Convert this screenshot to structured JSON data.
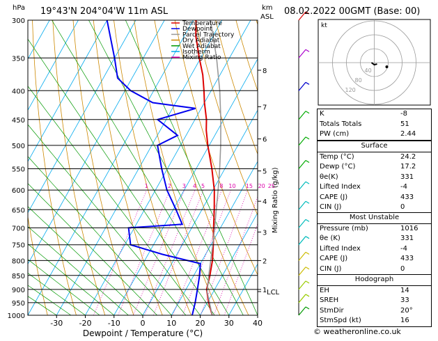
{
  "header": {
    "hpa": "hPa",
    "location": "19°43'N  204°04'W  11m  ASL",
    "km": "km",
    "asl": "ASL",
    "datetime": "08.02.2022  00GMT  (Base: 00)"
  },
  "copyright": "© weatheronline.co.uk",
  "legend": [
    {
      "label": "Temperature",
      "color": "#dd0000"
    },
    {
      "label": "Dewpoint",
      "color": "#0000ee"
    },
    {
      "label": "Parcel Trajectory",
      "color": "#999999"
    },
    {
      "label": "Dry Adiabat",
      "color": "#cc8800"
    },
    {
      "label": "Wet Adiabat",
      "color": "#009900"
    },
    {
      "label": "Isotherm",
      "color": "#00aaee"
    },
    {
      "label": "Mixing Ratio",
      "color": "#dd00aa"
    }
  ],
  "indices": {
    "rows": [
      {
        "label": "K",
        "value": "-8"
      },
      {
        "label": "Totals Totals",
        "value": "51"
      },
      {
        "label": "PW (cm)",
        "value": "2.44"
      }
    ]
  },
  "surface": {
    "title": "Surface",
    "rows": [
      {
        "label": "Temp (°C)",
        "value": "24.2"
      },
      {
        "label": "Dewp (°C)",
        "value": "17.2"
      },
      {
        "label": "θe(K)",
        "value": "331"
      },
      {
        "label": "Lifted Index",
        "value": "-4"
      },
      {
        "label": "CAPE (J)",
        "value": "433"
      },
      {
        "label": "CIN (J)",
        "value": "0"
      }
    ]
  },
  "most_unstable": {
    "title": "Most Unstable",
    "rows": [
      {
        "label": "Pressure (mb)",
        "value": "1016"
      },
      {
        "label": "θe (K)",
        "value": "331"
      },
      {
        "label": "Lifted Index",
        "value": "-4"
      },
      {
        "label": "CAPE (J)",
        "value": "433"
      },
      {
        "label": "CIN (J)",
        "value": "0"
      }
    ]
  },
  "hodograph_table": {
    "title": "Hodograph",
    "rows": [
      {
        "label": "EH",
        "value": "14"
      },
      {
        "label": "SREH",
        "value": "33"
      },
      {
        "label": "StmDir",
        "value": "20°"
      },
      {
        "label": "StmSpd (kt)",
        "value": "16"
      }
    ]
  },
  "hodograph_plot": {
    "unit_label": "kt",
    "ring_labels": [
      "40",
      "80",
      "120"
    ]
  },
  "chart_data": {
    "type": "line",
    "xlabel": "Dewpoint / Temperature (°C)",
    "ylabel": "hPa",
    "right_label": "Mixing Ratio (g/kg)",
    "x_ticks": [
      "-30",
      "-20",
      "-10",
      "0",
      "10",
      "20",
      "30",
      "40"
    ],
    "xlim": [
      -40,
      40
    ],
    "pressure_levels": [
      "300",
      "350",
      "400",
      "450",
      "500",
      "550",
      "600",
      "650",
      "700",
      "750",
      "800",
      "850",
      "900",
      "950",
      "1000"
    ],
    "ylim": [
      1000,
      300
    ],
    "y_scale": "log",
    "km_ticks": [
      {
        "label": "8",
        "p": 368
      },
      {
        "label": "7",
        "p": 427
      },
      {
        "label": "6",
        "p": 487
      },
      {
        "label": "5",
        "p": 555
      },
      {
        "label": "4",
        "p": 628
      },
      {
        "label": "3",
        "p": 712
      },
      {
        "label": "2",
        "p": 800
      },
      {
        "label": "1",
        "p": 900
      },
      {
        "label": "LCL",
        "p": 908
      }
    ],
    "mixing_ratio_labels": [
      "1",
      "2",
      "3",
      "4",
      "5",
      "8",
      "10",
      "15",
      "20",
      "25"
    ],
    "series": [
      {
        "name": "Temperature",
        "color": "#dd0000",
        "points": [
          [
            1000,
            24.2
          ],
          [
            950,
            20.5
          ],
          [
            900,
            17.2
          ],
          [
            850,
            15.6
          ],
          [
            800,
            13.6
          ],
          [
            750,
            10.8
          ],
          [
            700,
            7.6
          ],
          [
            650,
            4.3
          ],
          [
            600,
            0.5
          ],
          [
            550,
            -4.5
          ],
          [
            500,
            -10.5
          ],
          [
            470,
            -14
          ],
          [
            450,
            -16
          ],
          [
            420,
            -20
          ],
          [
            400,
            -22.5
          ],
          [
            375,
            -26
          ],
          [
            350,
            -30.5
          ],
          [
            320,
            -36
          ],
          [
            300,
            -39
          ]
        ]
      },
      {
        "name": "Dewpoint",
        "color": "#0000ee",
        "points": [
          [
            1000,
            17.2
          ],
          [
            950,
            15.8
          ],
          [
            900,
            14.0
          ],
          [
            850,
            12.0
          ],
          [
            810,
            10.0
          ],
          [
            800,
            5.0
          ],
          [
            780,
            -5
          ],
          [
            750,
            -18
          ],
          [
            700,
            -22
          ],
          [
            690,
            -4
          ],
          [
            650,
            -9
          ],
          [
            600,
            -16
          ],
          [
            550,
            -22
          ],
          [
            500,
            -28
          ],
          [
            480,
            -23
          ],
          [
            450,
            -33
          ],
          [
            430,
            -22
          ],
          [
            420,
            -38
          ],
          [
            400,
            -48
          ],
          [
            380,
            -55
          ],
          [
            350,
            -60
          ],
          [
            300,
            -70
          ]
        ]
      },
      {
        "name": "Parcel Trajectory",
        "color": "#999999",
        "points": [
          [
            1000,
            24.2
          ],
          [
            950,
            20.8
          ],
          [
            908,
            17.8
          ],
          [
            850,
            15.2
          ],
          [
            800,
            13.0
          ],
          [
            750,
            10.6
          ],
          [
            700,
            8.0
          ],
          [
            650,
            5.0
          ],
          [
            600,
            1.8
          ],
          [
            550,
            -1.8
          ],
          [
            500,
            -6.0
          ],
          [
            450,
            -11.0
          ],
          [
            400,
            -17.0
          ],
          [
            350,
            -24.5
          ],
          [
            300,
            -34.0
          ]
        ]
      }
    ],
    "wind_barbs": [
      {
        "p": 1000,
        "color": "#009900"
      },
      {
        "p": 950,
        "color": "#99cc00"
      },
      {
        "p": 900,
        "color": "#99cc00"
      },
      {
        "p": 850,
        "color": "#ccbb00"
      },
      {
        "p": 800,
        "color": "#ccbb00"
      },
      {
        "p": 750,
        "color": "#00bbbb"
      },
      {
        "p": 700,
        "color": "#00bbbb"
      },
      {
        "p": 650,
        "color": "#00bbbb"
      },
      {
        "p": 600,
        "color": "#00bbbb"
      },
      {
        "p": 550,
        "color": "#00aa00"
      },
      {
        "p": 500,
        "color": "#00aa00"
      },
      {
        "p": 450,
        "color": "#00aa00"
      },
      {
        "p": 400,
        "color": "#0000cc"
      },
      {
        "p": 350,
        "color": "#aa00cc"
      },
      {
        "p": 300,
        "color": "#dd0000"
      }
    ]
  }
}
